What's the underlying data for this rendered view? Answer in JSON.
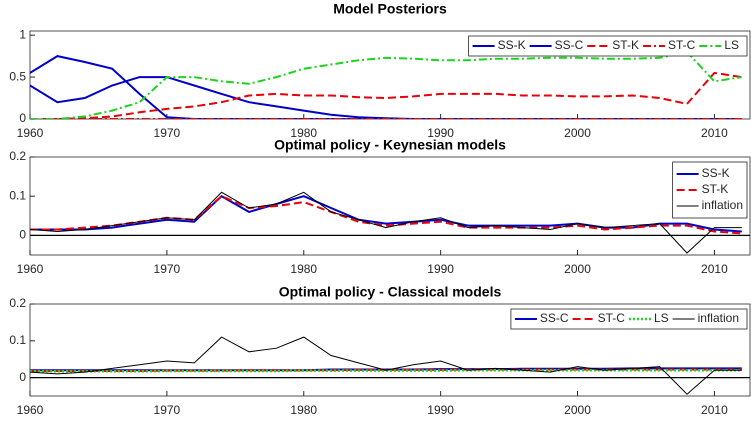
{
  "chart_data": [
    {
      "type": "line",
      "title": "Model Posteriors",
      "x": [
        1960,
        1962,
        1964,
        1966,
        1968,
        1970,
        1972,
        1974,
        1976,
        1978,
        1980,
        1982,
        1984,
        1986,
        1988,
        1990,
        1992,
        1994,
        1996,
        1998,
        2000,
        2002,
        2004,
        2006,
        2008,
        2010,
        2012
      ],
      "xlim": [
        1960,
        2012.6
      ],
      "xticks": [
        1960,
        1970,
        1980,
        1990,
        2000,
        2010
      ],
      "ylim": [
        0,
        1.05
      ],
      "yticks": [
        0,
        0.5,
        1
      ],
      "legend": "top-right",
      "legend_orientation": "horizontal",
      "series": [
        {
          "name": "SS-K",
          "color": "#0000c8",
          "dash": "solid",
          "marker": "plus",
          "values": [
            0.55,
            0.75,
            0.68,
            0.6,
            0.3,
            0.02,
            0,
            0,
            0,
            0,
            0,
            0,
            0,
            0,
            0,
            0,
            0,
            0,
            0,
            0,
            0,
            0,
            0,
            0,
            0,
            0,
            0
          ]
        },
        {
          "name": "SS-C",
          "color": "#0000c8",
          "dash": "solid",
          "values": [
            0.4,
            0.2,
            0.25,
            0.4,
            0.5,
            0.5,
            0.4,
            0.3,
            0.2,
            0.15,
            0.1,
            0.05,
            0.02,
            0.01,
            0,
            0,
            0,
            0,
            0,
            0,
            0,
            0,
            0,
            0,
            0,
            0,
            0
          ]
        },
        {
          "name": "ST-K",
          "color": "#e8000b",
          "dash": "dashed",
          "values": [
            0,
            0,
            0.01,
            0.03,
            0.08,
            0.12,
            0.15,
            0.2,
            0.28,
            0.3,
            0.28,
            0.28,
            0.26,
            0.25,
            0.27,
            0.3,
            0.3,
            0.3,
            0.28,
            0.28,
            0.27,
            0.27,
            0.28,
            0.25,
            0.18,
            0.55,
            0.5
          ]
        },
        {
          "name": "ST-C",
          "color": "#e8000b",
          "dash": "dashdot",
          "marker": "plus",
          "values": [
            0,
            0,
            0,
            0,
            0,
            0,
            0,
            0,
            0,
            0,
            0,
            0,
            0,
            0,
            0,
            0,
            0,
            0,
            0,
            0,
            0,
            0,
            0,
            0,
            0,
            0,
            0
          ]
        },
        {
          "name": "LS",
          "color": "#1ed21e",
          "dash": "dashdot",
          "values": [
            0,
            0,
            0.03,
            0.1,
            0.2,
            0.5,
            0.5,
            0.45,
            0.42,
            0.5,
            0.6,
            0.65,
            0.7,
            0.73,
            0.72,
            0.7,
            0.7,
            0.72,
            0.72,
            0.73,
            0.73,
            0.72,
            0.72,
            0.73,
            0.8,
            0.45,
            0.5
          ]
        }
      ]
    },
    {
      "type": "line",
      "title": "Optimal policy - Keynesian models",
      "x": [
        1960,
        1962,
        1964,
        1966,
        1968,
        1970,
        1972,
        1974,
        1976,
        1978,
        1980,
        1982,
        1984,
        1986,
        1988,
        1990,
        1992,
        1994,
        1996,
        1998,
        2000,
        2002,
        2004,
        2006,
        2008,
        2010,
        2012
      ],
      "xlim": [
        1960,
        2012.6
      ],
      "xticks": [
        1960,
        1970,
        1980,
        1990,
        2000,
        2010
      ],
      "ylim": [
        -0.05,
        0.2
      ],
      "yticks": [
        0,
        0.1,
        0.2
      ],
      "hline": 0,
      "legend": "top-right",
      "legend_orientation": "vertical",
      "series": [
        {
          "name": "SS-K",
          "color": "#0000c8",
          "dash": "solid",
          "values": [
            0.015,
            0.015,
            0.015,
            0.02,
            0.03,
            0.04,
            0.035,
            0.1,
            0.06,
            0.08,
            0.1,
            0.07,
            0.04,
            0.03,
            0.035,
            0.04,
            0.025,
            0.025,
            0.025,
            0.025,
            0.03,
            0.02,
            0.02,
            0.03,
            0.03,
            0.015,
            0.01
          ]
        },
        {
          "name": "ST-K",
          "color": "#e8000b",
          "dash": "dashed",
          "values": [
            0.015,
            0.015,
            0.02,
            0.025,
            0.035,
            0.045,
            0.04,
            0.1,
            0.07,
            0.075,
            0.085,
            0.06,
            0.035,
            0.025,
            0.03,
            0.035,
            0.02,
            0.02,
            0.02,
            0.02,
            0.025,
            0.015,
            0.02,
            0.025,
            0.025,
            0.01,
            0.005
          ]
        },
        {
          "name": "inflation",
          "color": "#000000",
          "dash": "thin",
          "values": [
            0.015,
            0.01,
            0.015,
            0.025,
            0.035,
            0.045,
            0.04,
            0.11,
            0.07,
            0.08,
            0.11,
            0.06,
            0.04,
            0.02,
            0.035,
            0.045,
            0.02,
            0.025,
            0.02,
            0.015,
            0.03,
            0.02,
            0.025,
            0.03,
            -0.045,
            0.02,
            0.02
          ]
        }
      ]
    },
    {
      "type": "line",
      "title": "Optimal policy - Classical models",
      "x": [
        1960,
        1962,
        1964,
        1966,
        1968,
        1970,
        1972,
        1974,
        1976,
        1978,
        1980,
        1982,
        1984,
        1986,
        1988,
        1990,
        1992,
        1994,
        1996,
        1998,
        2000,
        2002,
        2004,
        2006,
        2008,
        2010,
        2012
      ],
      "xlim": [
        1960,
        2012.6
      ],
      "xticks": [
        1960,
        1970,
        1980,
        1990,
        2000,
        2010
      ],
      "ylim": [
        -0.05,
        0.2
      ],
      "yticks": [
        0,
        0.1,
        0.2
      ],
      "hline": 0,
      "legend": "top-right",
      "legend_orientation": "horizontal",
      "series": [
        {
          "name": "SS-C",
          "color": "#0000c8",
          "dash": "solid",
          "values": [
            0.02,
            0.02,
            0.02,
            0.02,
            0.02,
            0.02,
            0.02,
            0.02,
            0.02,
            0.02,
            0.02,
            0.022,
            0.022,
            0.022,
            0.022,
            0.023,
            0.023,
            0.023,
            0.024,
            0.024,
            0.024,
            0.024,
            0.025,
            0.025,
            0.025,
            0.025,
            0.025
          ]
        },
        {
          "name": "ST-C",
          "color": "#e8000b",
          "dash": "dashed",
          "values": [
            0.018,
            0.018,
            0.018,
            0.018,
            0.018,
            0.019,
            0.019,
            0.019,
            0.02,
            0.02,
            0.02,
            0.02,
            0.021,
            0.021,
            0.021,
            0.021,
            0.022,
            0.022,
            0.022,
            0.022,
            0.022,
            0.022,
            0.022,
            0.022,
            0.022,
            0.022,
            0.022
          ]
        },
        {
          "name": "LS",
          "color": "#1ed21e",
          "dash": "dotted",
          "values": [
            0.017,
            0.017,
            0.017,
            0.017,
            0.017,
            0.018,
            0.018,
            0.018,
            0.018,
            0.018,
            0.019,
            0.019,
            0.019,
            0.019,
            0.019,
            0.019,
            0.02,
            0.02,
            0.02,
            0.02,
            0.02,
            0.02,
            0.02,
            0.02,
            0.02,
            0.02,
            0.02
          ]
        },
        {
          "name": "inflation",
          "color": "#000000",
          "dash": "thin",
          "values": [
            0.015,
            0.01,
            0.015,
            0.025,
            0.035,
            0.045,
            0.04,
            0.11,
            0.07,
            0.08,
            0.11,
            0.06,
            0.04,
            0.02,
            0.035,
            0.045,
            0.02,
            0.025,
            0.02,
            0.015,
            0.03,
            0.02,
            0.025,
            0.03,
            -0.045,
            0.02,
            0.02
          ]
        }
      ]
    }
  ]
}
